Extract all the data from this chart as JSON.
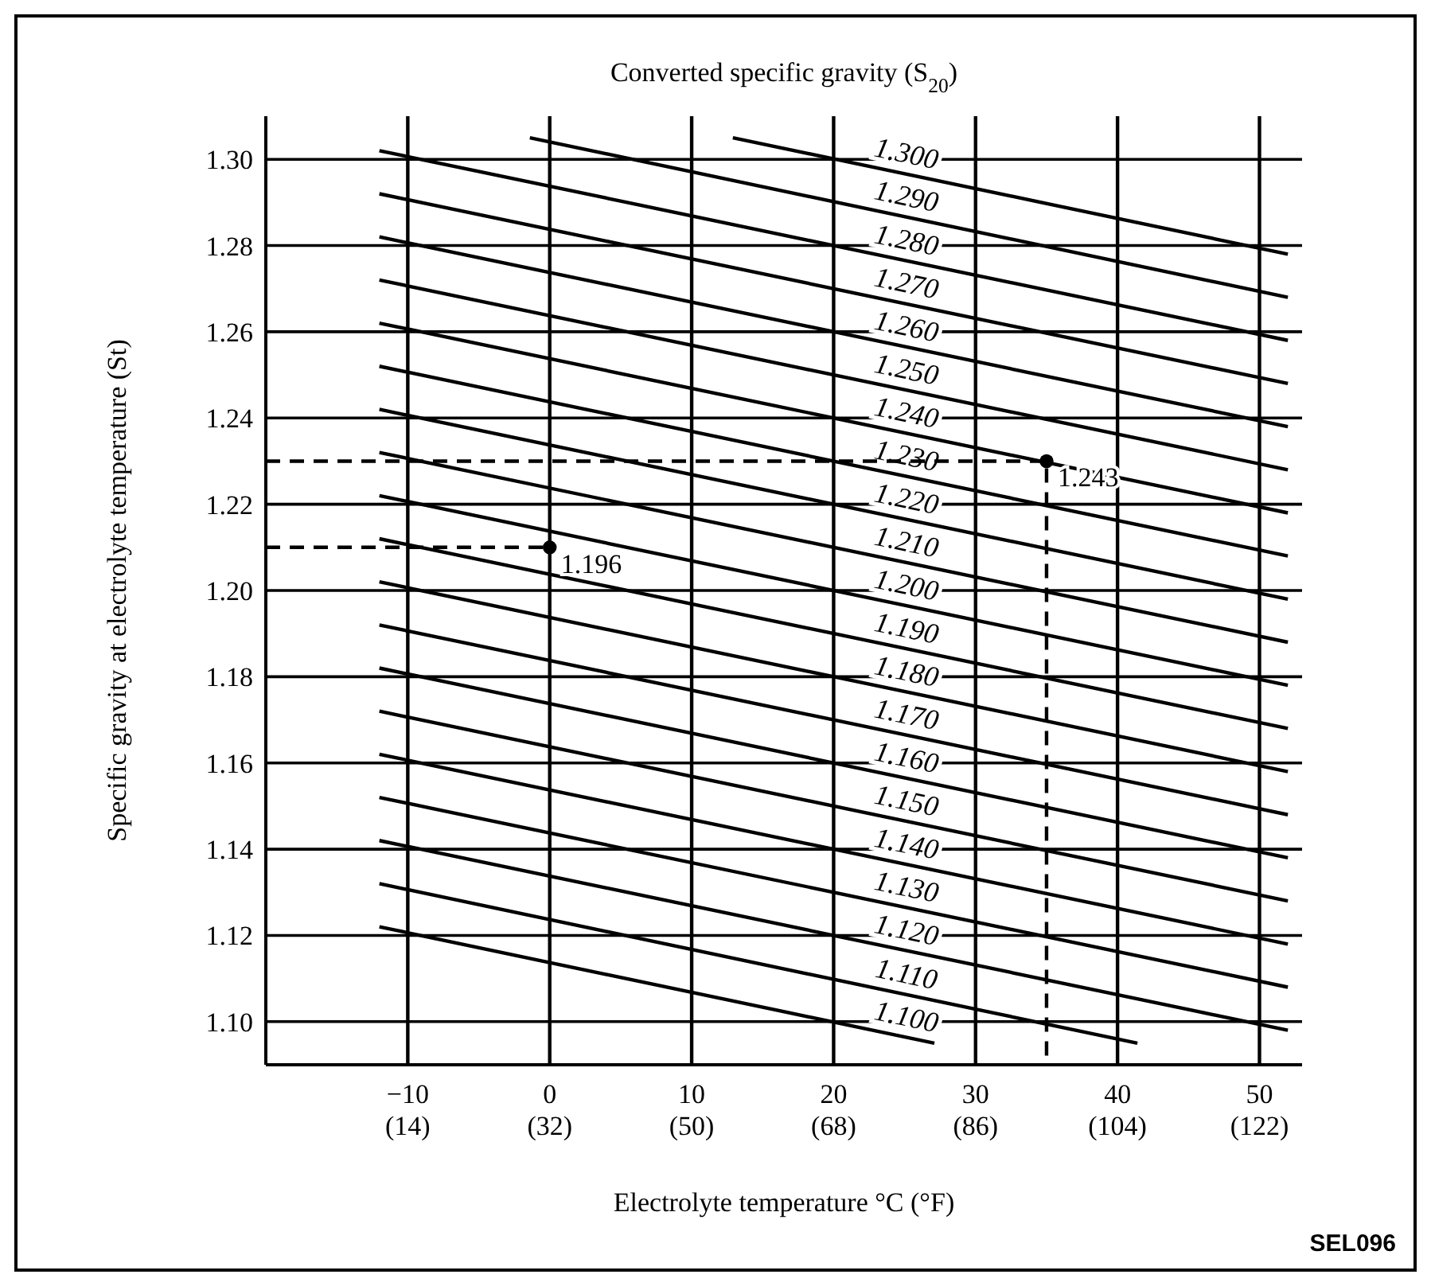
{
  "chart_data": {
    "type": "line",
    "title": "Converted specific gravity (S$_{20}$)",
    "xlabel": "Electrolyte temperature °C (°F)",
    "ylabel": "Specific gravity at electrolyte temperature (St)",
    "xlim": [
      -20,
      53
    ],
    "ylim": [
      1.09,
      1.31
    ],
    "xticks": [
      {
        "value": -10,
        "label": "−10"
      },
      0,
      10,
      20,
      30,
      40,
      50
    ],
    "x2lim": [
      -4,
      127.4
    ],
    "x2ticks": [
      {
        "value": 14,
        "label": "(14)"
      },
      {
        "value": 32,
        "label": "(32)"
      },
      {
        "value": 50,
        "label": "(50)"
      },
      {
        "value": 68,
        "label": "(68)"
      },
      {
        "value": 86,
        "label": "(86)"
      },
      {
        "value": 104,
        "label": "(104)"
      },
      {
        "value": 122,
        "label": "(122)"
      }
    ],
    "yticks": [
      {
        "value": 1.1,
        "label": "1.10"
      },
      {
        "value": 1.12,
        "label": "1.12"
      },
      {
        "value": 1.14,
        "label": "1.14"
      },
      {
        "value": 1.16,
        "label": "1.16"
      },
      {
        "value": 1.18,
        "label": "1.18"
      },
      {
        "value": 1.2,
        "label": "1.20"
      },
      {
        "value": 1.22,
        "label": "1.22"
      },
      {
        "value": 1.24,
        "label": "1.24"
      },
      {
        "value": 1.26,
        "label": "1.26"
      },
      {
        "value": 1.28,
        "label": "1.28"
      },
      {
        "value": 1.3,
        "label": "1.30"
      }
    ],
    "grid": true,
    "series": [
      {
        "name": "1.300",
        "color": "#000000",
        "x": [
          12.9,
          52
        ],
        "values": [
          1.305,
          1.278
        ]
      },
      {
        "name": "1.290",
        "color": "#000000",
        "x": [
          -1.4,
          52
        ],
        "values": [
          1.305,
          1.268
        ]
      },
      {
        "name": "1.280",
        "color": "#000000",
        "x": [
          -12,
          52
        ],
        "values": [
          1.302,
          1.258
        ]
      },
      {
        "name": "1.270",
        "color": "#000000",
        "x": [
          -12,
          52
        ],
        "values": [
          1.292,
          1.248
        ]
      },
      {
        "name": "1.260",
        "color": "#000000",
        "x": [
          -12,
          52
        ],
        "values": [
          1.282,
          1.238
        ]
      },
      {
        "name": "1.250",
        "color": "#000000",
        "x": [
          -12,
          52
        ],
        "values": [
          1.272,
          1.228
        ]
      },
      {
        "name": "1.240",
        "color": "#000000",
        "x": [
          -12,
          52
        ],
        "values": [
          1.262,
          1.218
        ]
      },
      {
        "name": "1.230",
        "color": "#000000",
        "x": [
          -12,
          52
        ],
        "values": [
          1.252,
          1.208
        ]
      },
      {
        "name": "1.220",
        "color": "#000000",
        "x": [
          -12,
          52
        ],
        "values": [
          1.242,
          1.198
        ]
      },
      {
        "name": "1.210",
        "color": "#000000",
        "x": [
          -12,
          52
        ],
        "values": [
          1.232,
          1.188
        ]
      },
      {
        "name": "1.200",
        "color": "#000000",
        "x": [
          -12,
          52
        ],
        "values": [
          1.222,
          1.178
        ]
      },
      {
        "name": "1.190",
        "color": "#000000",
        "x": [
          -12,
          52
        ],
        "values": [
          1.212,
          1.168
        ]
      },
      {
        "name": "1.180",
        "color": "#000000",
        "x": [
          -12,
          52
        ],
        "values": [
          1.202,
          1.158
        ]
      },
      {
        "name": "1.170",
        "color": "#000000",
        "x": [
          -12,
          52
        ],
        "values": [
          1.192,
          1.148
        ]
      },
      {
        "name": "1.160",
        "color": "#000000",
        "x": [
          -12,
          52
        ],
        "values": [
          1.182,
          1.138
        ]
      },
      {
        "name": "1.150",
        "color": "#000000",
        "x": [
          -12,
          52
        ],
        "values": [
          1.172,
          1.128
        ]
      },
      {
        "name": "1.140",
        "color": "#000000",
        "x": [
          -12,
          52
        ],
        "values": [
          1.162,
          1.118
        ]
      },
      {
        "name": "1.130",
        "color": "#000000",
        "x": [
          -12,
          52
        ],
        "values": [
          1.152,
          1.108
        ]
      },
      {
        "name": "1.120",
        "color": "#000000",
        "x": [
          -12,
          52
        ],
        "values": [
          1.142,
          1.098
        ]
      },
      {
        "name": "1.110",
        "color": "#000000",
        "x": [
          -12,
          41.4
        ],
        "values": [
          1.132,
          1.095
        ]
      },
      {
        "name": "1.100",
        "color": "#000000",
        "x": [
          -12,
          27.1
        ],
        "values": [
          1.122,
          1.095
        ]
      },
      {
        "type": "line",
        "line_style": "dashed",
        "color": "#000000",
        "x": [
          -20,
          0
        ],
        "values": [
          1.21,
          1.21
        ]
      },
      {
        "type": "line",
        "line_style": "dashed",
        "color": "#000000",
        "x": [
          -20,
          35,
          35
        ],
        "values": [
          1.23,
          1.23,
          1.09
        ]
      },
      {
        "type": "scatter",
        "marker": "circle",
        "color": "#000000",
        "x": [
          0,
          35
        ],
        "values": [
          1.21,
          1.23
        ]
      }
    ],
    "annotations": [
      {
        "text": "1.196",
        "x": 0,
        "y": 1.21
      },
      {
        "text": "1.243",
        "x": 35,
        "y": 1.23
      },
      "SEL096"
    ]
  }
}
